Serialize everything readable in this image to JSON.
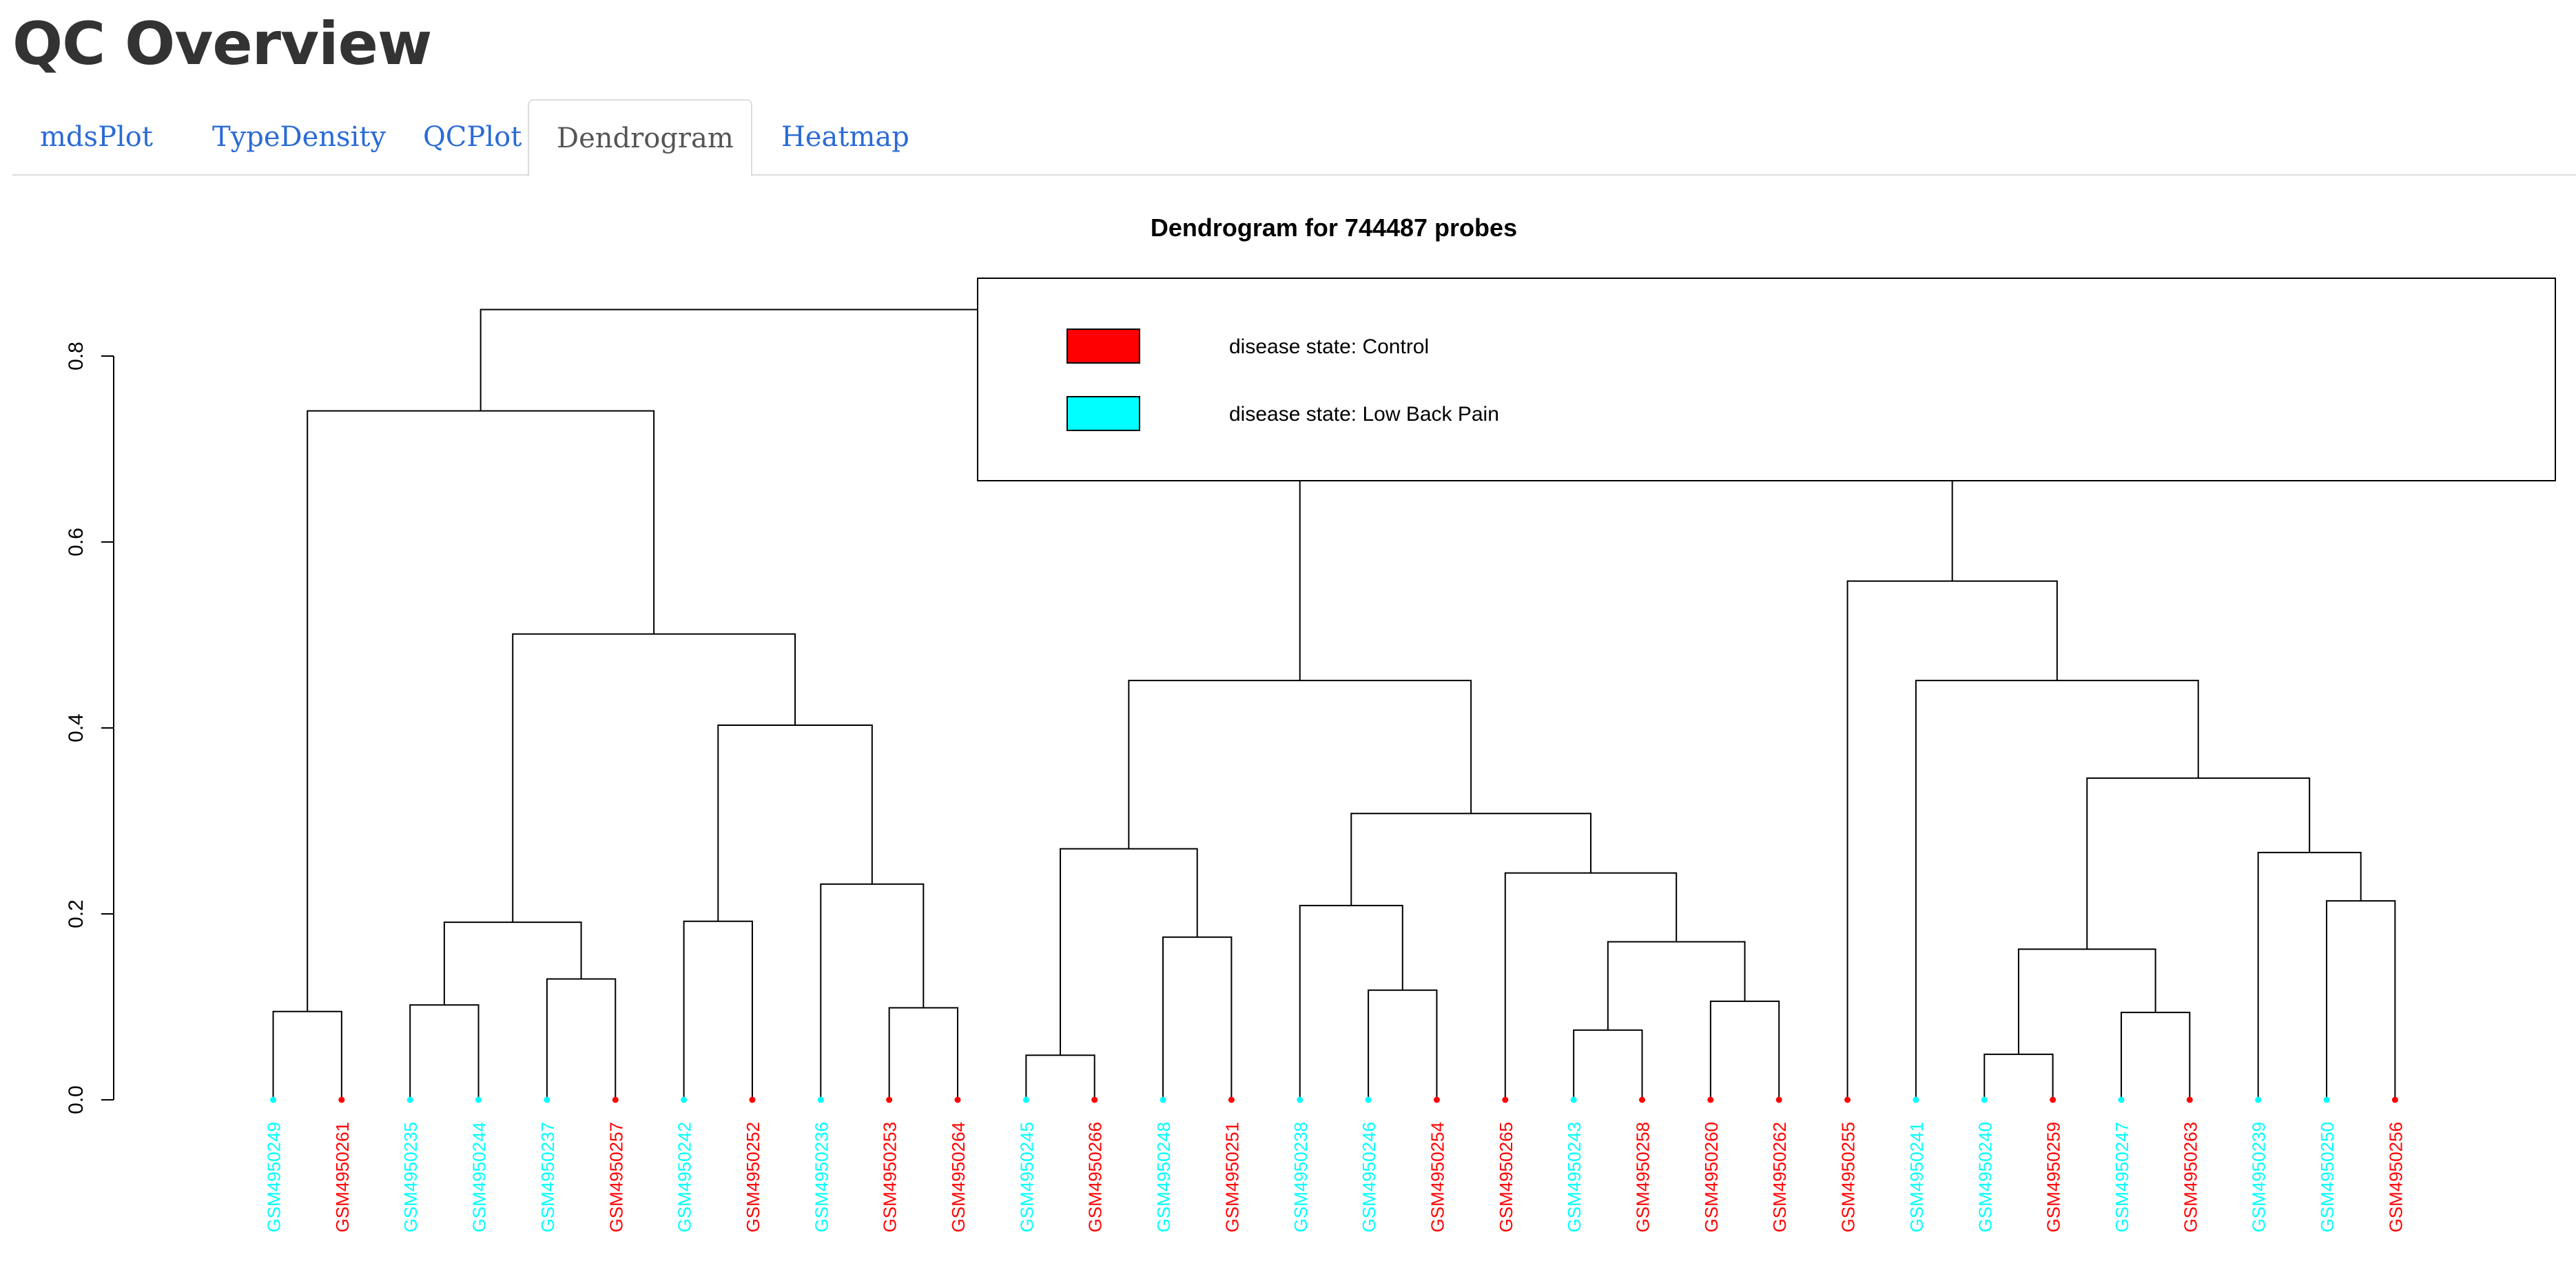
{
  "page": {
    "title": "QC Overview"
  },
  "tabs": [
    {
      "label": "mdsPlot",
      "active": false
    },
    {
      "label": "TypeDensity",
      "active": false
    },
    {
      "label": "QCPlot",
      "active": false
    },
    {
      "label": "Dendrogram",
      "active": true
    },
    {
      "label": "Heatmap",
      "active": false
    }
  ],
  "colors": {
    "control": "#ff0000",
    "low_back_pain": "#00ffff",
    "accent_link": "#2a6bd6"
  },
  "chart_data": {
    "type": "dendrogram",
    "title": "Dendrogram for 744487 probes",
    "ylim": [
      0,
      0.8
    ],
    "yticks": [
      "0.0",
      "0.2",
      "0.4",
      "0.6",
      "0.8"
    ],
    "ytick_values": [
      0,
      0.2,
      0.4,
      0.6,
      0.8
    ],
    "legend": {
      "placement": "top-right",
      "entries": [
        {
          "label": "disease state: Control",
          "color": "#ff0000"
        },
        {
          "label": "disease state: Low Back Pain",
          "color": "#00ffff"
        }
      ]
    },
    "leaves": [
      {
        "label": "GSM4950249",
        "group": "low_back_pain"
      },
      {
        "label": "GSM4950261",
        "group": "control"
      },
      {
        "label": "GSM4950235",
        "group": "low_back_pain"
      },
      {
        "label": "GSM4950244",
        "group": "low_back_pain"
      },
      {
        "label": "GSM4950237",
        "group": "low_back_pain"
      },
      {
        "label": "GSM4950257",
        "group": "control"
      },
      {
        "label": "GSM4950242",
        "group": "low_back_pain"
      },
      {
        "label": "GSM4950252",
        "group": "control"
      },
      {
        "label": "GSM4950236",
        "group": "low_back_pain"
      },
      {
        "label": "GSM4950253",
        "group": "control"
      },
      {
        "label": "GSM4950264",
        "group": "control"
      },
      {
        "label": "GSM4950245",
        "group": "low_back_pain"
      },
      {
        "label": "GSM4950266",
        "group": "control"
      },
      {
        "label": "GSM4950248",
        "group": "low_back_pain"
      },
      {
        "label": "GSM4950251",
        "group": "control"
      },
      {
        "label": "GSM4950238",
        "group": "low_back_pain"
      },
      {
        "label": "GSM4950246",
        "group": "low_back_pain"
      },
      {
        "label": "GSM4950254",
        "group": "control"
      },
      {
        "label": "GSM4950265",
        "group": "control"
      },
      {
        "label": "GSM4950243",
        "group": "low_back_pain"
      },
      {
        "label": "GSM4950258",
        "group": "control"
      },
      {
        "label": "GSM4950260",
        "group": "control"
      },
      {
        "label": "GSM4950262",
        "group": "control"
      },
      {
        "label": "GSM4950255",
        "group": "control"
      },
      {
        "label": "GSM4950241",
        "group": "low_back_pain"
      },
      {
        "label": "GSM4950240",
        "group": "low_back_pain"
      },
      {
        "label": "GSM4950259",
        "group": "control"
      },
      {
        "label": "GSM4950247",
        "group": "low_back_pain"
      },
      {
        "label": "GSM4950263",
        "group": "control"
      },
      {
        "label": "GSM4950239",
        "group": "low_back_pain"
      },
      {
        "label": "GSM4950250",
        "group": "low_back_pain"
      },
      {
        "label": "GSM4950256",
        "group": "control"
      }
    ],
    "merges": [
      {
        "left": 0,
        "right": 1,
        "height": 0.095
      },
      {
        "left": 2,
        "right": 3,
        "height": 0.102
      },
      {
        "left": 4,
        "right": 5,
        "height": 0.13
      },
      {
        "left": 33,
        "right": 34,
        "height": 0.191
      },
      {
        "left": 6,
        "right": 7,
        "height": 0.192
      },
      {
        "left": 9,
        "right": 10,
        "height": 0.099
      },
      {
        "left": 8,
        "right": 37,
        "height": 0.232
      },
      {
        "left": 36,
        "right": 38,
        "height": 0.403
      },
      {
        "left": 35,
        "right": 39,
        "height": 0.501
      },
      {
        "left": 32,
        "right": 40,
        "height": 0.741
      },
      {
        "left": 11,
        "right": 12,
        "height": 0.048
      },
      {
        "left": 13,
        "right": 14,
        "height": 0.175
      },
      {
        "left": 42,
        "right": 43,
        "height": 0.27
      },
      {
        "left": 16,
        "right": 17,
        "height": 0.118
      },
      {
        "left": 15,
        "right": 45,
        "height": 0.209
      },
      {
        "left": 19,
        "right": 20,
        "height": 0.075
      },
      {
        "left": 21,
        "right": 22,
        "height": 0.106
      },
      {
        "left": 47,
        "right": 48,
        "height": 0.17
      },
      {
        "left": 18,
        "right": 49,
        "height": 0.244
      },
      {
        "left": 46,
        "right": 50,
        "height": 0.308
      },
      {
        "left": 44,
        "right": 51,
        "height": 0.451
      },
      {
        "left": 25,
        "right": 26,
        "height": 0.049
      },
      {
        "left": 27,
        "right": 28,
        "height": 0.094
      },
      {
        "left": 53,
        "right": 54,
        "height": 0.162
      },
      {
        "left": 30,
        "right": 31,
        "height": 0.214
      },
      {
        "left": 29,
        "right": 56,
        "height": 0.266
      },
      {
        "left": 55,
        "right": 57,
        "height": 0.346
      },
      {
        "left": 24,
        "right": 58,
        "height": 0.451
      },
      {
        "left": 23,
        "right": 59,
        "height": 0.558
      },
      {
        "left": 52,
        "right": 60,
        "height": 0.803
      },
      {
        "left": 41,
        "right": 61,
        "height": 0.85
      }
    ]
  }
}
